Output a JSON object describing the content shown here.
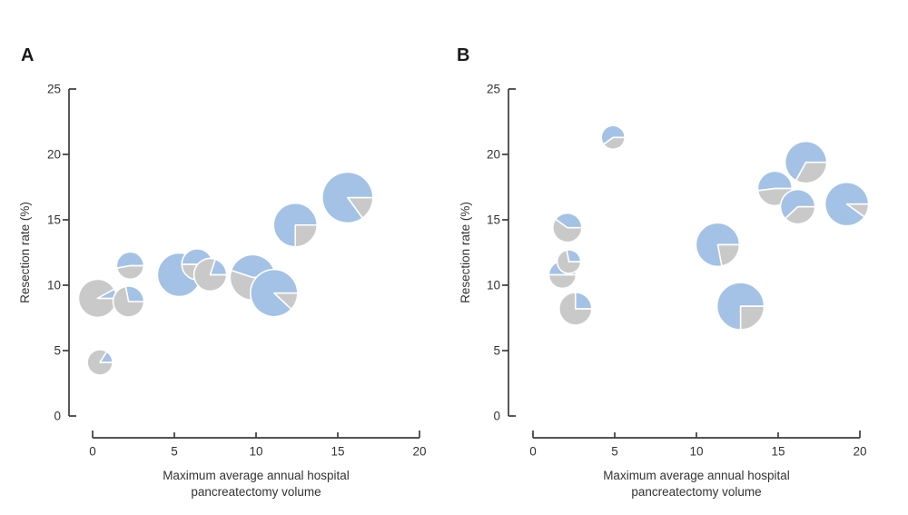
{
  "figure": {
    "background": "#ffffff",
    "colors": {
      "blue": "#a3c2e5",
      "gray": "#c9c9c9",
      "wedge_border": "#ffffff",
      "axis": "#3c3c3c",
      "text": "#333333"
    }
  },
  "chart_data": [
    {
      "type": "scatter",
      "marker": "pie",
      "panel_label": "A",
      "xlabel_lines": [
        "Maximum average annual hospital",
        "pancreatectomy volume"
      ],
      "ylabel": "Resection rate (%)",
      "xlim": [
        0,
        20
      ],
      "ylim": [
        0,
        25
      ],
      "x_ticks": [
        0,
        5,
        10,
        15,
        20
      ],
      "y_ticks": [
        0,
        5,
        10,
        15,
        20,
        25
      ],
      "grid": false,
      "legend": "none",
      "series_legend_note": "blue fraction vs gray fraction of each pie; r = marker radius px",
      "points": [
        {
          "x": 0.3,
          "y": 9.0,
          "r": 21,
          "blue_fraction": 0.08
        },
        {
          "x": 2.2,
          "y": 8.75,
          "r": 17,
          "blue_fraction": 0.28
        },
        {
          "x": 0.45,
          "y": 4.1,
          "r": 14,
          "blue_fraction": 0.16
        },
        {
          "x": 2.3,
          "y": 11.5,
          "r": 15,
          "blue_fraction": 0.53
        },
        {
          "x": 5.3,
          "y": 10.8,
          "r": 24,
          "blue_fraction": 1.0
        },
        {
          "x": 6.4,
          "y": 11.6,
          "r": 17,
          "blue_fraction": 0.5
        },
        {
          "x": 7.2,
          "y": 10.8,
          "r": 18,
          "blue_fraction": 0.2
        },
        {
          "x": 9.8,
          "y": 10.6,
          "r": 25,
          "blue_fraction": 0.45
        },
        {
          "x": 11.1,
          "y": 9.4,
          "r": 26,
          "blue_fraction": 0.88
        },
        {
          "x": 12.4,
          "y": 14.6,
          "r": 24,
          "blue_fraction": 0.75
        },
        {
          "x": 15.6,
          "y": 16.7,
          "r": 28,
          "blue_fraction": 0.85
        }
      ]
    },
    {
      "type": "scatter",
      "marker": "pie",
      "panel_label": "B",
      "xlabel_lines": [
        "Maximum average annual hospital",
        "pancreatectomy volume"
      ],
      "ylabel": "Resection rate (%)",
      "xlim": [
        0,
        20
      ],
      "ylim": [
        0,
        25
      ],
      "x_ticks": [
        0,
        5,
        10,
        15,
        20
      ],
      "y_ticks": [
        0,
        5,
        10,
        15,
        20,
        25
      ],
      "grid": false,
      "legend": "none",
      "points": [
        {
          "x": 4.9,
          "y": 21.3,
          "r": 13,
          "blue_fraction": 0.6
        },
        {
          "x": 2.1,
          "y": 14.4,
          "r": 16,
          "blue_fraction": 0.4
        },
        {
          "x": 1.8,
          "y": 10.8,
          "r": 15,
          "blue_fraction": 0.5
        },
        {
          "x": 2.2,
          "y": 11.8,
          "r": 13,
          "blue_fraction": 0.28
        },
        {
          "x": 2.6,
          "y": 8.2,
          "r": 18,
          "blue_fraction": 0.25
        },
        {
          "x": 11.3,
          "y": 13.1,
          "r": 24,
          "blue_fraction": 0.78
        },
        {
          "x": 12.7,
          "y": 8.4,
          "r": 26,
          "blue_fraction": 0.75
        },
        {
          "x": 16.7,
          "y": 19.4,
          "r": 23,
          "blue_fraction": 0.67
        },
        {
          "x": 14.8,
          "y": 17.4,
          "r": 19,
          "blue_fraction": 0.52
        },
        {
          "x": 16.2,
          "y": 16.0,
          "r": 19,
          "blue_fraction": 0.62
        },
        {
          "x": 19.2,
          "y": 16.2,
          "r": 24,
          "blue_fraction": 0.9
        }
      ]
    }
  ]
}
